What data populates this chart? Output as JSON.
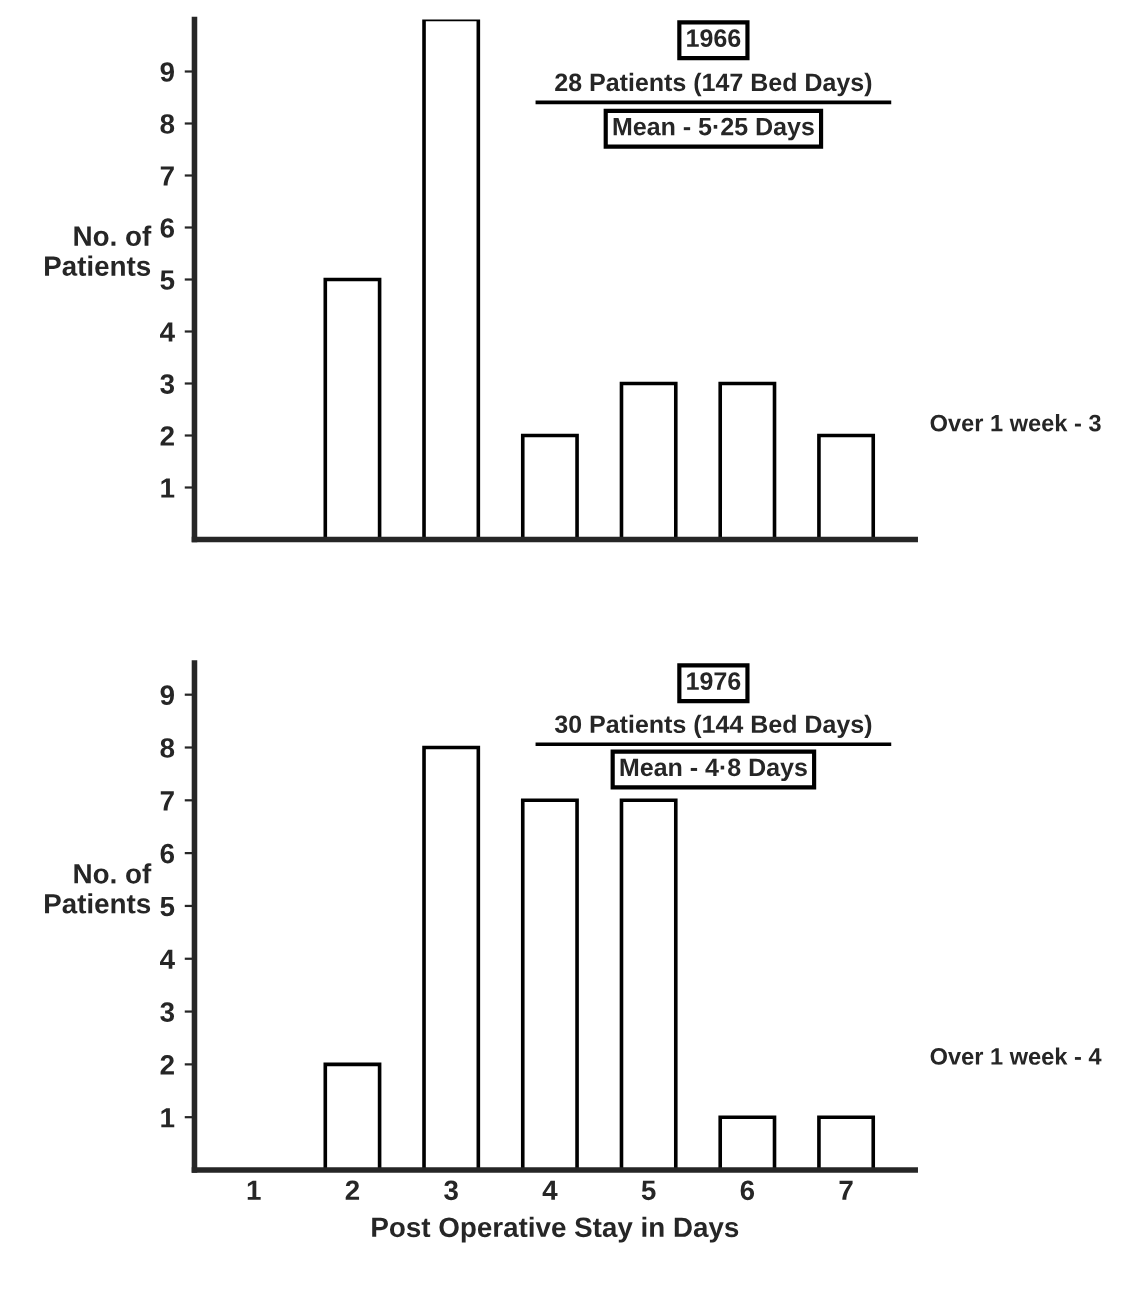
{
  "chart_data": [
    {
      "type": "bar",
      "categories": [
        "1",
        "2",
        "3",
        "4",
        "5",
        "6",
        "7"
      ],
      "values": [
        0,
        5,
        10,
        2,
        3,
        3,
        2
      ],
      "color": "#ffffff",
      "ylabel": "No. of\nPatients",
      "ylim": [
        0,
        10
      ],
      "yticks": [
        1,
        2,
        3,
        4,
        5,
        6,
        7,
        8,
        9
      ],
      "tick_labels": "y",
      "grid": false,
      "annotations": [
        "1966",
        "28 Patients (147 Bed Days)",
        "Mean - 5·25 Days",
        "Over 1 week - 3"
      ]
    },
    {
      "type": "bar",
      "categories": [
        "1",
        "2",
        "3",
        "4",
        "5",
        "6",
        "7"
      ],
      "values": [
        0,
        2,
        8,
        7,
        7,
        1,
        1
      ],
      "color": "#ffffff",
      "ylabel": "No. of\nPatients",
      "xlabel": "Post Operative Stay in Days",
      "ylim": [
        0,
        9.6
      ],
      "yticks": [
        1,
        2,
        3,
        4,
        5,
        6,
        7,
        8,
        9
      ],
      "grid": false,
      "annotations": [
        "1976",
        "30 Patients (144 Bed Days)",
        "Mean - 4·8 Days",
        "Over 1 week - 4"
      ]
    }
  ]
}
